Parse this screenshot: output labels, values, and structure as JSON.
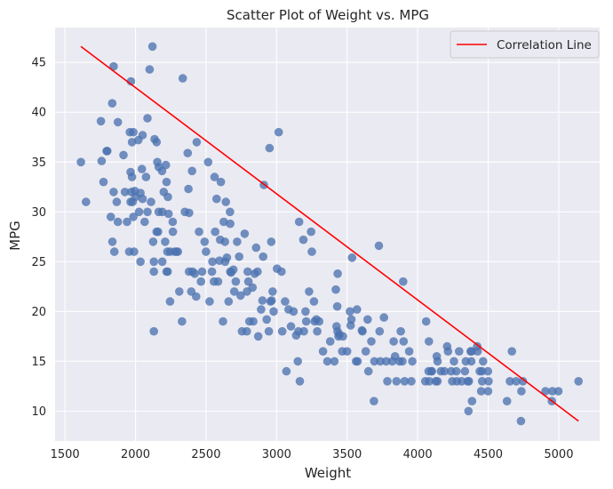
{
  "chart_data": {
    "type": "scatter",
    "title": "Scatter Plot of Weight vs. MPG",
    "xlabel": "Weight",
    "ylabel": "MPG",
    "xlim": [
      1430,
      5290
    ],
    "ylim": [
      7.0,
      48.5
    ],
    "xticks": [
      1500,
      2000,
      2500,
      3000,
      3500,
      4000,
      4500,
      5000
    ],
    "yticks": [
      10,
      15,
      20,
      25,
      30,
      35,
      40,
      45
    ],
    "grid": true,
    "background_color": "#eaeaf2",
    "point_color": "#4c72b0",
    "line_color": "#ff0000",
    "legend": {
      "position": "top-right",
      "entries": [
        "Correlation Line"
      ]
    },
    "correlation_line": {
      "name": "Correlation Line",
      "x": [
        1613,
        5140
      ],
      "y": [
        46.6,
        9.0
      ]
    },
    "series": [
      {
        "points": [
          [
            1613,
            35.0
          ],
          [
            1649,
            31.0
          ],
          [
            1755,
            39.1
          ],
          [
            1760,
            35.1
          ],
          [
            1773,
            33.0
          ],
          [
            1795,
            36.1
          ],
          [
            1800,
            36.1
          ],
          [
            1825,
            29.5
          ],
          [
            1835,
            40.9
          ],
          [
            1836,
            27.0
          ],
          [
            1845,
            44.6
          ],
          [
            1845,
            32.0
          ],
          [
            1850,
            26.0
          ],
          [
            1867,
            31.0
          ],
          [
            1875,
            29.0
          ],
          [
            1875,
            39.0
          ],
          [
            1915,
            35.7
          ],
          [
            1925,
            32.0
          ],
          [
            1940,
            29.0
          ],
          [
            1955,
            26.0
          ],
          [
            1960,
            38.0
          ],
          [
            1965,
            31.0
          ],
          [
            1965,
            34.0
          ],
          [
            1968,
            43.1
          ],
          [
            1970,
            32.0
          ],
          [
            1975,
            37.0
          ],
          [
            1975,
            33.5
          ],
          [
            1980,
            31.0
          ],
          [
            1985,
            38.0
          ],
          [
            1985,
            29.5
          ],
          [
            1990,
            26.0
          ],
          [
            1995,
            32.1
          ],
          [
            2000,
            31.5
          ],
          [
            2020,
            37.2
          ],
          [
            2025,
            30.0
          ],
          [
            2035,
            31.9
          ],
          [
            2035,
            25.0
          ],
          [
            2045,
            34.3
          ],
          [
            2050,
            37.7
          ],
          [
            2050,
            31.3
          ],
          [
            2065,
            29.0
          ],
          [
            2075,
            33.5
          ],
          [
            2085,
            39.4
          ],
          [
            2085,
            30.0
          ],
          [
            2100,
            44.3
          ],
          [
            2110,
            31.0
          ],
          [
            2120,
            46.6
          ],
          [
            2125,
            27.0
          ],
          [
            2130,
            25.0
          ],
          [
            2130,
            24.0
          ],
          [
            2130,
            18.0
          ],
          [
            2135,
            37.3
          ],
          [
            2150,
            37.0
          ],
          [
            2150,
            28.0
          ],
          [
            2155,
            35.0
          ],
          [
            2160,
            28.0
          ],
          [
            2164,
            30.0
          ],
          [
            2165,
            34.5
          ],
          [
            2188,
            34.1
          ],
          [
            2190,
            25.0
          ],
          [
            2190,
            30.0
          ],
          [
            2200,
            32.0
          ],
          [
            2210,
            27.0
          ],
          [
            2215,
            34.7
          ],
          [
            2220,
            24.0
          ],
          [
            2220,
            33.0
          ],
          [
            2226,
            26.0
          ],
          [
            2228,
            24.0
          ],
          [
            2230,
            31.5
          ],
          [
            2234,
            29.8
          ],
          [
            2245,
            21.0
          ],
          [
            2246,
            26.0
          ],
          [
            2264,
            29.0
          ],
          [
            2265,
            28.0
          ],
          [
            2278,
            26.0
          ],
          [
            2290,
            26.0
          ],
          [
            2300,
            26.0
          ],
          [
            2310,
            22.0
          ],
          [
            2330,
            19.0
          ],
          [
            2335,
            43.4
          ],
          [
            2350,
            30.0
          ],
          [
            2370,
            35.9
          ],
          [
            2375,
            32.3
          ],
          [
            2379,
            24.0
          ],
          [
            2380,
            29.9
          ],
          [
            2395,
            22.0
          ],
          [
            2401,
            34.1
          ],
          [
            2405,
            24.0
          ],
          [
            2420,
            23.8
          ],
          [
            2430,
            21.5
          ],
          [
            2434,
            37.0
          ],
          [
            2450,
            28.0
          ],
          [
            2464,
            23.0
          ],
          [
            2472,
            24.0
          ],
          [
            2490,
            27.0
          ],
          [
            2500,
            26.0
          ],
          [
            2515,
            35.0
          ],
          [
            2525,
            21.0
          ],
          [
            2542,
            24.0
          ],
          [
            2545,
            25.0
          ],
          [
            2556,
            23.0
          ],
          [
            2560,
            33.5
          ],
          [
            2565,
            28.0
          ],
          [
            2575,
            31.3
          ],
          [
            2585,
            23.0
          ],
          [
            2595,
            25.1
          ],
          [
            2600,
            27.2
          ],
          [
            2605,
            33.0
          ],
          [
            2620,
            19.0
          ],
          [
            2625,
            29.0
          ],
          [
            2634,
            27.0
          ],
          [
            2635,
            25.0
          ],
          [
            2640,
            31.0
          ],
          [
            2648,
            25.4
          ],
          [
            2660,
            21.0
          ],
          [
            2670,
            30.0
          ],
          [
            2671,
            28.8
          ],
          [
            2672,
            24.0
          ],
          [
            2678,
            23.9
          ],
          [
            2694,
            24.2
          ],
          [
            2700,
            22.0
          ],
          [
            2711,
            23.0
          ],
          [
            2720,
            27.0
          ],
          [
            2735,
            25.5
          ],
          [
            2745,
            21.6
          ],
          [
            2755,
            18.0
          ],
          [
            2774,
            27.8
          ],
          [
            2789,
            18.0
          ],
          [
            2790,
            22.0
          ],
          [
            2795,
            24.0
          ],
          [
            2800,
            23.0
          ],
          [
            2807,
            19.0
          ],
          [
            2830,
            22.4
          ],
          [
            2835,
            19.0
          ],
          [
            2845,
            23.8
          ],
          [
            2855,
            26.4
          ],
          [
            2865,
            24.0
          ],
          [
            2870,
            17.5
          ],
          [
            2890,
            20.2
          ],
          [
            2900,
            21.1
          ],
          [
            2905,
            25.5
          ],
          [
            2910,
            32.7
          ],
          [
            2930,
            19.2
          ],
          [
            2945,
            18.0
          ],
          [
            2950,
            36.4
          ],
          [
            2957,
            21.0
          ],
          [
            2962,
            27.0
          ],
          [
            2965,
            21.1
          ],
          [
            2972,
            22.0
          ],
          [
            2979,
            20.0
          ],
          [
            3003,
            24.3
          ],
          [
            3015,
            38.0
          ],
          [
            3035,
            24.0
          ],
          [
            3040,
            18.0
          ],
          [
            3060,
            21.0
          ],
          [
            3070,
            14.0
          ],
          [
            3085,
            20.2
          ],
          [
            3102,
            18.5
          ],
          [
            3120,
            20.0
          ],
          [
            3139,
            17.6
          ],
          [
            3150,
            15.0
          ],
          [
            3155,
            18.0
          ],
          [
            3160,
            29.0
          ],
          [
            3165,
            13.0
          ],
          [
            3190,
            27.2
          ],
          [
            3193,
            18.0
          ],
          [
            3205,
            20.0
          ],
          [
            3210,
            19.0
          ],
          [
            3230,
            22.0
          ],
          [
            3245,
            28.0
          ],
          [
            3250,
            26.0
          ],
          [
            3265,
            21.0
          ],
          [
            3270,
            19.0
          ],
          [
            3282,
            19.2
          ],
          [
            3288,
            18.0
          ],
          [
            3302,
            19.0
          ],
          [
            3329,
            16.0
          ],
          [
            3360,
            15.0
          ],
          [
            3380,
            17.0
          ],
          [
            3410,
            15.0
          ],
          [
            3420,
            22.2
          ],
          [
            3425,
            18.5
          ],
          [
            3430,
            20.5
          ],
          [
            3432,
            18.0
          ],
          [
            3433,
            23.8
          ],
          [
            3439,
            17.5
          ],
          [
            3445,
            17.7
          ],
          [
            3465,
            16.0
          ],
          [
            3470,
            17.5
          ],
          [
            3500,
            16.0
          ],
          [
            3520,
            20.0
          ],
          [
            3525,
            18.6
          ],
          [
            3530,
            19.2
          ],
          [
            3535,
            25.4
          ],
          [
            3563,
            15.0
          ],
          [
            3570,
            20.2
          ],
          [
            3574,
            15.0
          ],
          [
            3605,
            18.1
          ],
          [
            3609,
            18.0
          ],
          [
            3632,
            16.0
          ],
          [
            3645,
            19.2
          ],
          [
            3651,
            14.0
          ],
          [
            3672,
            17.0
          ],
          [
            3690,
            11.0
          ],
          [
            3693,
            15.0
          ],
          [
            3725,
            26.6
          ],
          [
            3730,
            18.0
          ],
          [
            3735,
            15.0
          ],
          [
            3761,
            19.4
          ],
          [
            3777,
            15.0
          ],
          [
            3785,
            13.0
          ],
          [
            3820,
            15.0
          ],
          [
            3830,
            17.0
          ],
          [
            3840,
            15.5
          ],
          [
            3850,
            13.0
          ],
          [
            3870,
            15.0
          ],
          [
            3880,
            18.0
          ],
          [
            3892,
            15.0
          ],
          [
            3897,
            23.0
          ],
          [
            3900,
            17.0
          ],
          [
            3907,
            13.0
          ],
          [
            3940,
            16.0
          ],
          [
            3955,
            13.0
          ],
          [
            3962,
            15.0
          ],
          [
            4054,
            13.0
          ],
          [
            4060,
            19.0
          ],
          [
            4077,
            14.0
          ],
          [
            4080,
            17.0
          ],
          [
            4082,
            13.0
          ],
          [
            4098,
            14.0
          ],
          [
            4100,
            14.0
          ],
          [
            4129,
            13.0
          ],
          [
            4135,
            15.5
          ],
          [
            4140,
            13.0
          ],
          [
            4141,
            15.0
          ],
          [
            4165,
            14.0
          ],
          [
            4190,
            14.0
          ],
          [
            4209,
            16.5
          ],
          [
            4215,
            16.0
          ],
          [
            4237,
            14.0
          ],
          [
            4245,
            13.0
          ],
          [
            4257,
            15.0
          ],
          [
            4274,
            14.0
          ],
          [
            4278,
            13.0
          ],
          [
            4294,
            16.0
          ],
          [
            4312,
            13.0
          ],
          [
            4335,
            14.0
          ],
          [
            4341,
            15.0
          ],
          [
            4354,
            13.0
          ],
          [
            4360,
            10.0
          ],
          [
            4363,
            13.0
          ],
          [
            4376,
            16.0
          ],
          [
            4380,
            15.0
          ],
          [
            4382,
            16.0
          ],
          [
            4385,
            11.0
          ],
          [
            4422,
            16.5
          ],
          [
            4425,
            16.0
          ],
          [
            4440,
            14.0
          ],
          [
            4450,
            12.0
          ],
          [
            4456,
            14.0
          ],
          [
            4457,
            13.0
          ],
          [
            4464,
            15.0
          ],
          [
            4498,
            14.0
          ],
          [
            4499,
            12.0
          ],
          [
            4502,
            13.0
          ],
          [
            4633,
            11.0
          ],
          [
            4654,
            13.0
          ],
          [
            4668,
            16.0
          ],
          [
            4699,
            13.0
          ],
          [
            4732,
            9.0
          ],
          [
            4735,
            12.0
          ],
          [
            4746,
            13.0
          ],
          [
            4906,
            12.0
          ],
          [
            4951,
            11.0
          ],
          [
            4955,
            12.0
          ],
          [
            4997,
            12.0
          ],
          [
            5140,
            13.0
          ]
        ]
      }
    ]
  }
}
